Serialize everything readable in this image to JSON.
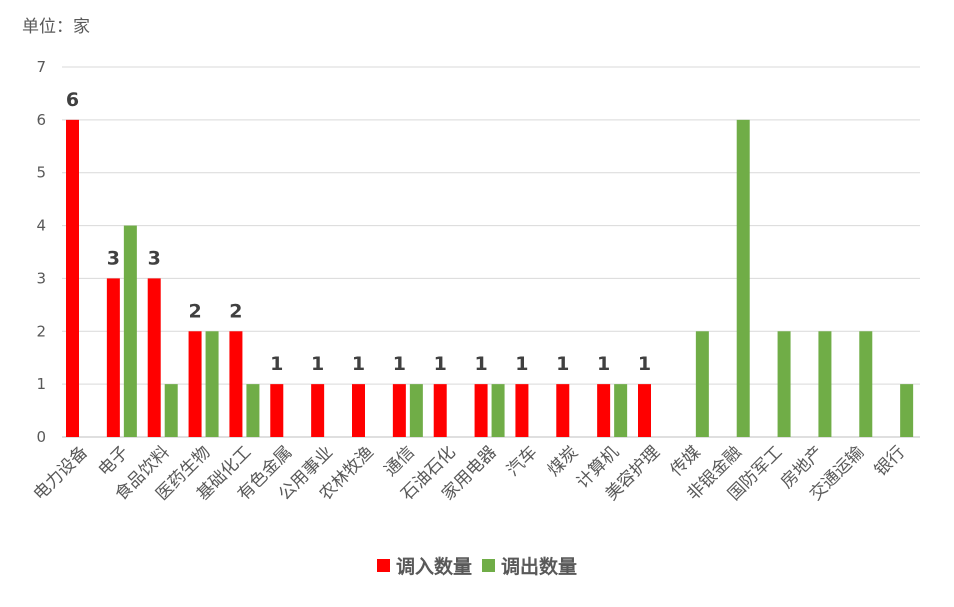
{
  "unit_label": "单位：家",
  "chart_data": {
    "type": "bar",
    "categories": [
      "电力设备",
      "电子",
      "食品饮料",
      "医药生物",
      "基础化工",
      "有色金属",
      "公用事业",
      "农林牧渔",
      "通信",
      "石油石化",
      "家用电器",
      "汽车",
      "煤炭",
      "计算机",
      "美容护理",
      "传媒",
      "非银金融",
      "国防军工",
      "房地产",
      "交通运输",
      "银行"
    ],
    "series": [
      {
        "name": "调入数量",
        "color": "#ff0000",
        "values": [
          6,
          3,
          3,
          2,
          2,
          1,
          1,
          1,
          1,
          1,
          1,
          1,
          1,
          1,
          1,
          0,
          0,
          0,
          0,
          0,
          0
        ],
        "labels": [
          "6",
          "3",
          "3",
          "2",
          "2",
          "1",
          "1",
          "1",
          "1",
          "1",
          "1",
          "1",
          "1",
          "1",
          "1",
          "",
          "",
          "",
          "",
          "",
          ""
        ]
      },
      {
        "name": "调出数量",
        "color": "#70ad47",
        "values": [
          0,
          4,
          1,
          2,
          1,
          0,
          0,
          0,
          1,
          0,
          1,
          0,
          0,
          1,
          0,
          2,
          6,
          2,
          2,
          2,
          1
        ]
      }
    ],
    "ylim": [
      0,
      7
    ],
    "yticks": [
      "0",
      "1",
      "2",
      "3",
      "4",
      "5",
      "6",
      "7"
    ],
    "grid": true,
    "legend": "bottom"
  }
}
